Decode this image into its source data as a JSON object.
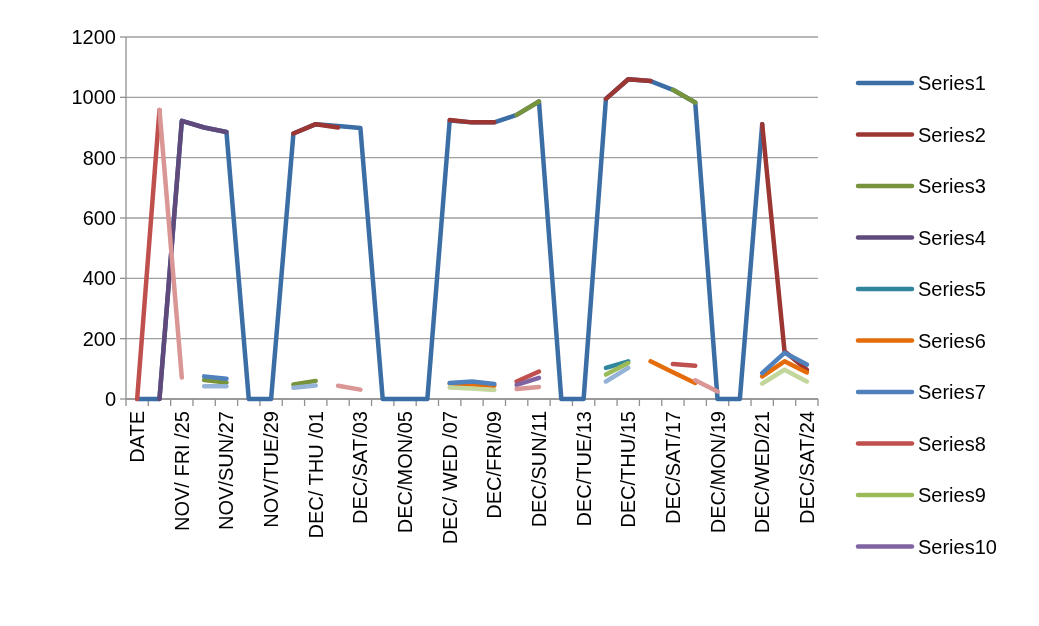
{
  "chart_data": {
    "type": "line",
    "categories": [
      "DATE",
      null,
      "NOV/ FRI /25",
      null,
      "NOV/SUN/27",
      null,
      "NOV/TUE/29",
      null,
      "DEC/ THU /01",
      null,
      "DEC/SAT/03",
      null,
      "DEC/MON/05",
      null,
      "DEC/ WED /07",
      null,
      "DEC/FRI/09",
      null,
      "DEC/SUN/11",
      null,
      "DEC/TUE/13",
      null,
      "DEC/THU/15",
      null,
      "DEC/SAT/17",
      null,
      "DEC/MON/19",
      null,
      "DEC/WED/21",
      null,
      "DEC/SAT/24"
    ],
    "ylim": [
      0,
      1200
    ],
    "yticks": [
      0,
      200,
      400,
      600,
      800,
      1000,
      1200
    ],
    "grid": "y",
    "legend": "right",
    "line_style": "solid",
    "marker": "none",
    "series": [
      {
        "name": "Series1",
        "color": "#3c6ea6",
        "values": [
          0,
          0,
          922,
          900,
          885,
          0,
          0,
          880,
          911,
          905,
          898,
          0,
          0,
          0,
          923,
          917,
          917,
          942,
          986,
          0,
          0,
          995,
          1060,
          1054,
          1025,
          983,
          0,
          0,
          911,
          null,
          null
        ]
      },
      {
        "name": "Series2",
        "color": "#9c3633",
        "values": [
          null,
          null,
          null,
          null,
          null,
          null,
          null,
          880,
          911,
          900,
          null,
          null,
          null,
          null,
          925,
          917,
          917,
          null,
          null,
          null,
          null,
          995,
          1060,
          1054,
          null,
          null,
          null,
          null,
          911,
          158,
          97
        ]
      },
      {
        "name": "Series3",
        "color": "#77933c",
        "values": [
          null,
          null,
          null,
          63,
          55,
          null,
          null,
          48,
          60,
          null,
          null,
          null,
          null,
          null,
          null,
          null,
          null,
          942,
          986,
          null,
          null,
          null,
          null,
          null,
          1025,
          983,
          null,
          null,
          null,
          null,
          null
        ]
      },
      {
        "name": "Series4",
        "color": "#604a7b",
        "values": [
          null,
          0,
          922,
          900,
          885,
          null,
          null,
          null,
          null,
          null,
          null,
          null,
          null,
          null,
          null,
          null,
          null,
          null,
          null,
          null,
          null,
          null,
          null,
          null,
          null,
          null,
          null,
          null,
          null,
          null,
          null
        ]
      },
      {
        "name": "Series5",
        "color": "#31859c",
        "values": [
          null,
          null,
          null,
          null,
          null,
          null,
          null,
          null,
          null,
          null,
          null,
          null,
          null,
          null,
          null,
          null,
          null,
          null,
          null,
          null,
          null,
          103,
          125,
          null,
          null,
          null,
          null,
          null,
          null,
          null,
          null
        ]
      },
      {
        "name": "Series6",
        "color": "#e46c0a",
        "values": [
          null,
          null,
          null,
          null,
          null,
          null,
          null,
          null,
          null,
          null,
          null,
          null,
          null,
          null,
          51,
          48,
          44,
          null,
          null,
          null,
          null,
          null,
          null,
          125,
          89,
          53,
          null,
          null,
          75,
          125,
          88
        ]
      },
      {
        "name": "Series7",
        "color": "#4f81bd",
        "values": [
          null,
          null,
          null,
          75,
          67,
          null,
          null,
          null,
          null,
          null,
          null,
          null,
          null,
          null,
          53,
          58,
          50,
          null,
          null,
          null,
          null,
          null,
          null,
          null,
          null,
          null,
          null,
          null,
          86,
          153,
          114
        ]
      },
      {
        "name": "Series8",
        "color": "#c0504d",
        "values": [
          0,
          958,
          null,
          null,
          null,
          null,
          null,
          null,
          null,
          null,
          null,
          null,
          null,
          null,
          null,
          null,
          null,
          58,
          91,
          null,
          null,
          null,
          null,
          null,
          116,
          110,
          null,
          null,
          null,
          null,
          null
        ]
      },
      {
        "name": "Series9",
        "color": "#9bbb59",
        "values": [
          null,
          null,
          null,
          null,
          null,
          null,
          null,
          null,
          null,
          null,
          null,
          null,
          null,
          null,
          null,
          null,
          null,
          null,
          null,
          null,
          null,
          81,
          119,
          null,
          null,
          null,
          null,
          null,
          null,
          null,
          null
        ]
      },
      {
        "name": "Series10",
        "color": "#8064a2",
        "values": [
          null,
          null,
          null,
          null,
          null,
          null,
          null,
          null,
          null,
          null,
          null,
          null,
          null,
          null,
          null,
          null,
          null,
          47,
          70,
          null,
          null,
          null,
          null,
          null,
          null,
          null,
          null,
          null,
          null,
          null,
          null
        ]
      },
      {
        "color": "#95b3d7",
        "values": [
          null,
          null,
          null,
          42,
          42,
          null,
          null,
          37,
          45,
          null,
          null,
          null,
          null,
          null,
          null,
          null,
          null,
          null,
          null,
          null,
          null,
          58,
          103,
          null,
          null,
          null,
          null,
          null,
          null,
          null,
          null
        ]
      },
      {
        "color": "#c3d69b",
        "values": [
          null,
          null,
          null,
          null,
          null,
          null,
          null,
          null,
          null,
          null,
          null,
          null,
          null,
          null,
          38,
          35,
          30,
          null,
          null,
          null,
          null,
          null,
          null,
          null,
          null,
          null,
          null,
          null,
          51,
          97,
          58
        ]
      },
      {
        "color": "#d99694",
        "values": [
          null,
          958,
          71,
          null,
          null,
          null,
          null,
          null,
          null,
          44,
          31,
          null,
          null,
          null,
          null,
          null,
          null,
          33,
          40,
          null,
          null,
          null,
          null,
          null,
          null,
          62,
          25,
          null,
          null,
          null,
          null
        ]
      }
    ]
  }
}
